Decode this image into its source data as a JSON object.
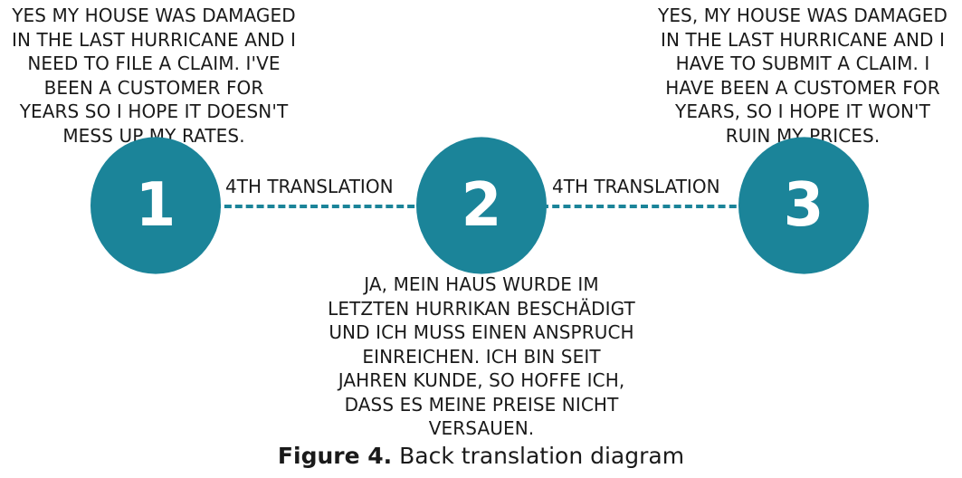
{
  "diagram": {
    "accent_color": "#1b8499",
    "steps": [
      {
        "number": "1",
        "text": "YES MY HOUSE WAS DAMAGED\nIN THE LAST HURRICANE AND I\nNEED TO FILE A CLAIM. I'VE\nBEEN A CUSTOMER FOR\nYEARS SO I HOPE IT DOESN'T\nMESS UP MY RATES."
      },
      {
        "number": "2",
        "text": "JA, MEIN HAUS WURDE IM\nLETZTEN HURRIKAN BESCHÄDIGT\nUND ICH MUSS EINEN ANSPRUCH\nEINREICHEN. ICH BIN SEIT\nJAHREN KUNDE, SO HOFFE ICH,\nDASS ES MEINE PREISE NICHT\nVERSAUEN."
      },
      {
        "number": "3",
        "text": "YES, MY HOUSE WAS DAMAGED\nIN THE LAST HURRICANE AND I\nHAVE TO SUBMIT A CLAIM. I\nHAVE BEEN A CUSTOMER FOR\nYEARS, SO I HOPE IT WON'T\nRUIN MY PRICES."
      }
    ],
    "connectors": [
      {
        "label": "4TH TRANSLATION"
      },
      {
        "label": "4TH TRANSLATION"
      }
    ]
  },
  "caption": {
    "prefix": "Figure 4.",
    "text": " Back translation diagram"
  }
}
